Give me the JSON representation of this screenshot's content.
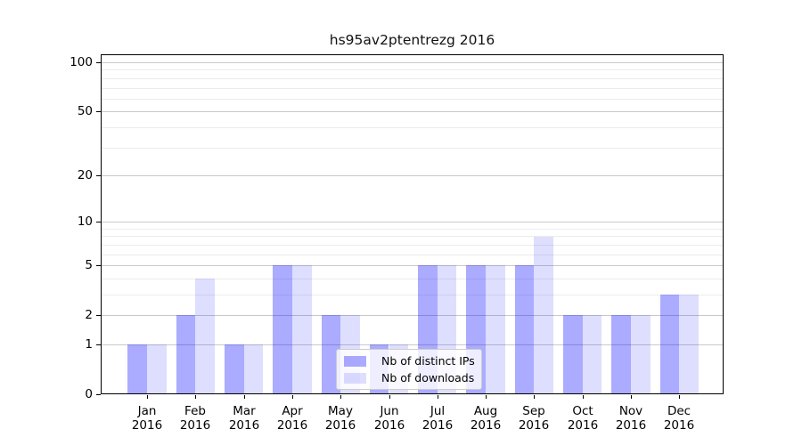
{
  "chart_data": {
    "type": "bar",
    "title": "hs95av2ptentrezg 2016",
    "categories": [
      "Jan 2016",
      "Feb 2016",
      "Mar 2016",
      "Apr 2016",
      "May 2016",
      "Jun 2016",
      "Jul 2016",
      "Aug 2016",
      "Sep 2016",
      "Oct 2016",
      "Nov 2016",
      "Dec 2016"
    ],
    "series": [
      {
        "name": "Nb of distinct IPs",
        "color": "#0000ff54",
        "values": [
          1,
          2,
          1,
          5,
          2,
          1,
          5,
          5,
          5,
          2,
          2,
          3
        ]
      },
      {
        "name": "Nb of downloads",
        "color": "#0000ff21",
        "values": [
          1,
          4,
          1,
          5,
          2,
          1,
          5,
          5,
          8,
          2,
          2,
          3
        ]
      }
    ],
    "xlabel": "",
    "ylabel": "",
    "y_scale": "log1p",
    "ylim": [
      0,
      112
    ],
    "y_major_ticks": [
      0,
      1,
      2,
      5,
      10,
      20,
      50,
      100
    ],
    "y_minor_gridlines": [
      3,
      4,
      6,
      7,
      8,
      9,
      30,
      40,
      60,
      70,
      80,
      90
    ],
    "grid": true,
    "legend_position": "lower center inside plot",
    "colors": {
      "major_grid": "#c9c9c9",
      "minor_grid": "#ececec",
      "axis": "#000000",
      "background": "#ffffff"
    }
  }
}
